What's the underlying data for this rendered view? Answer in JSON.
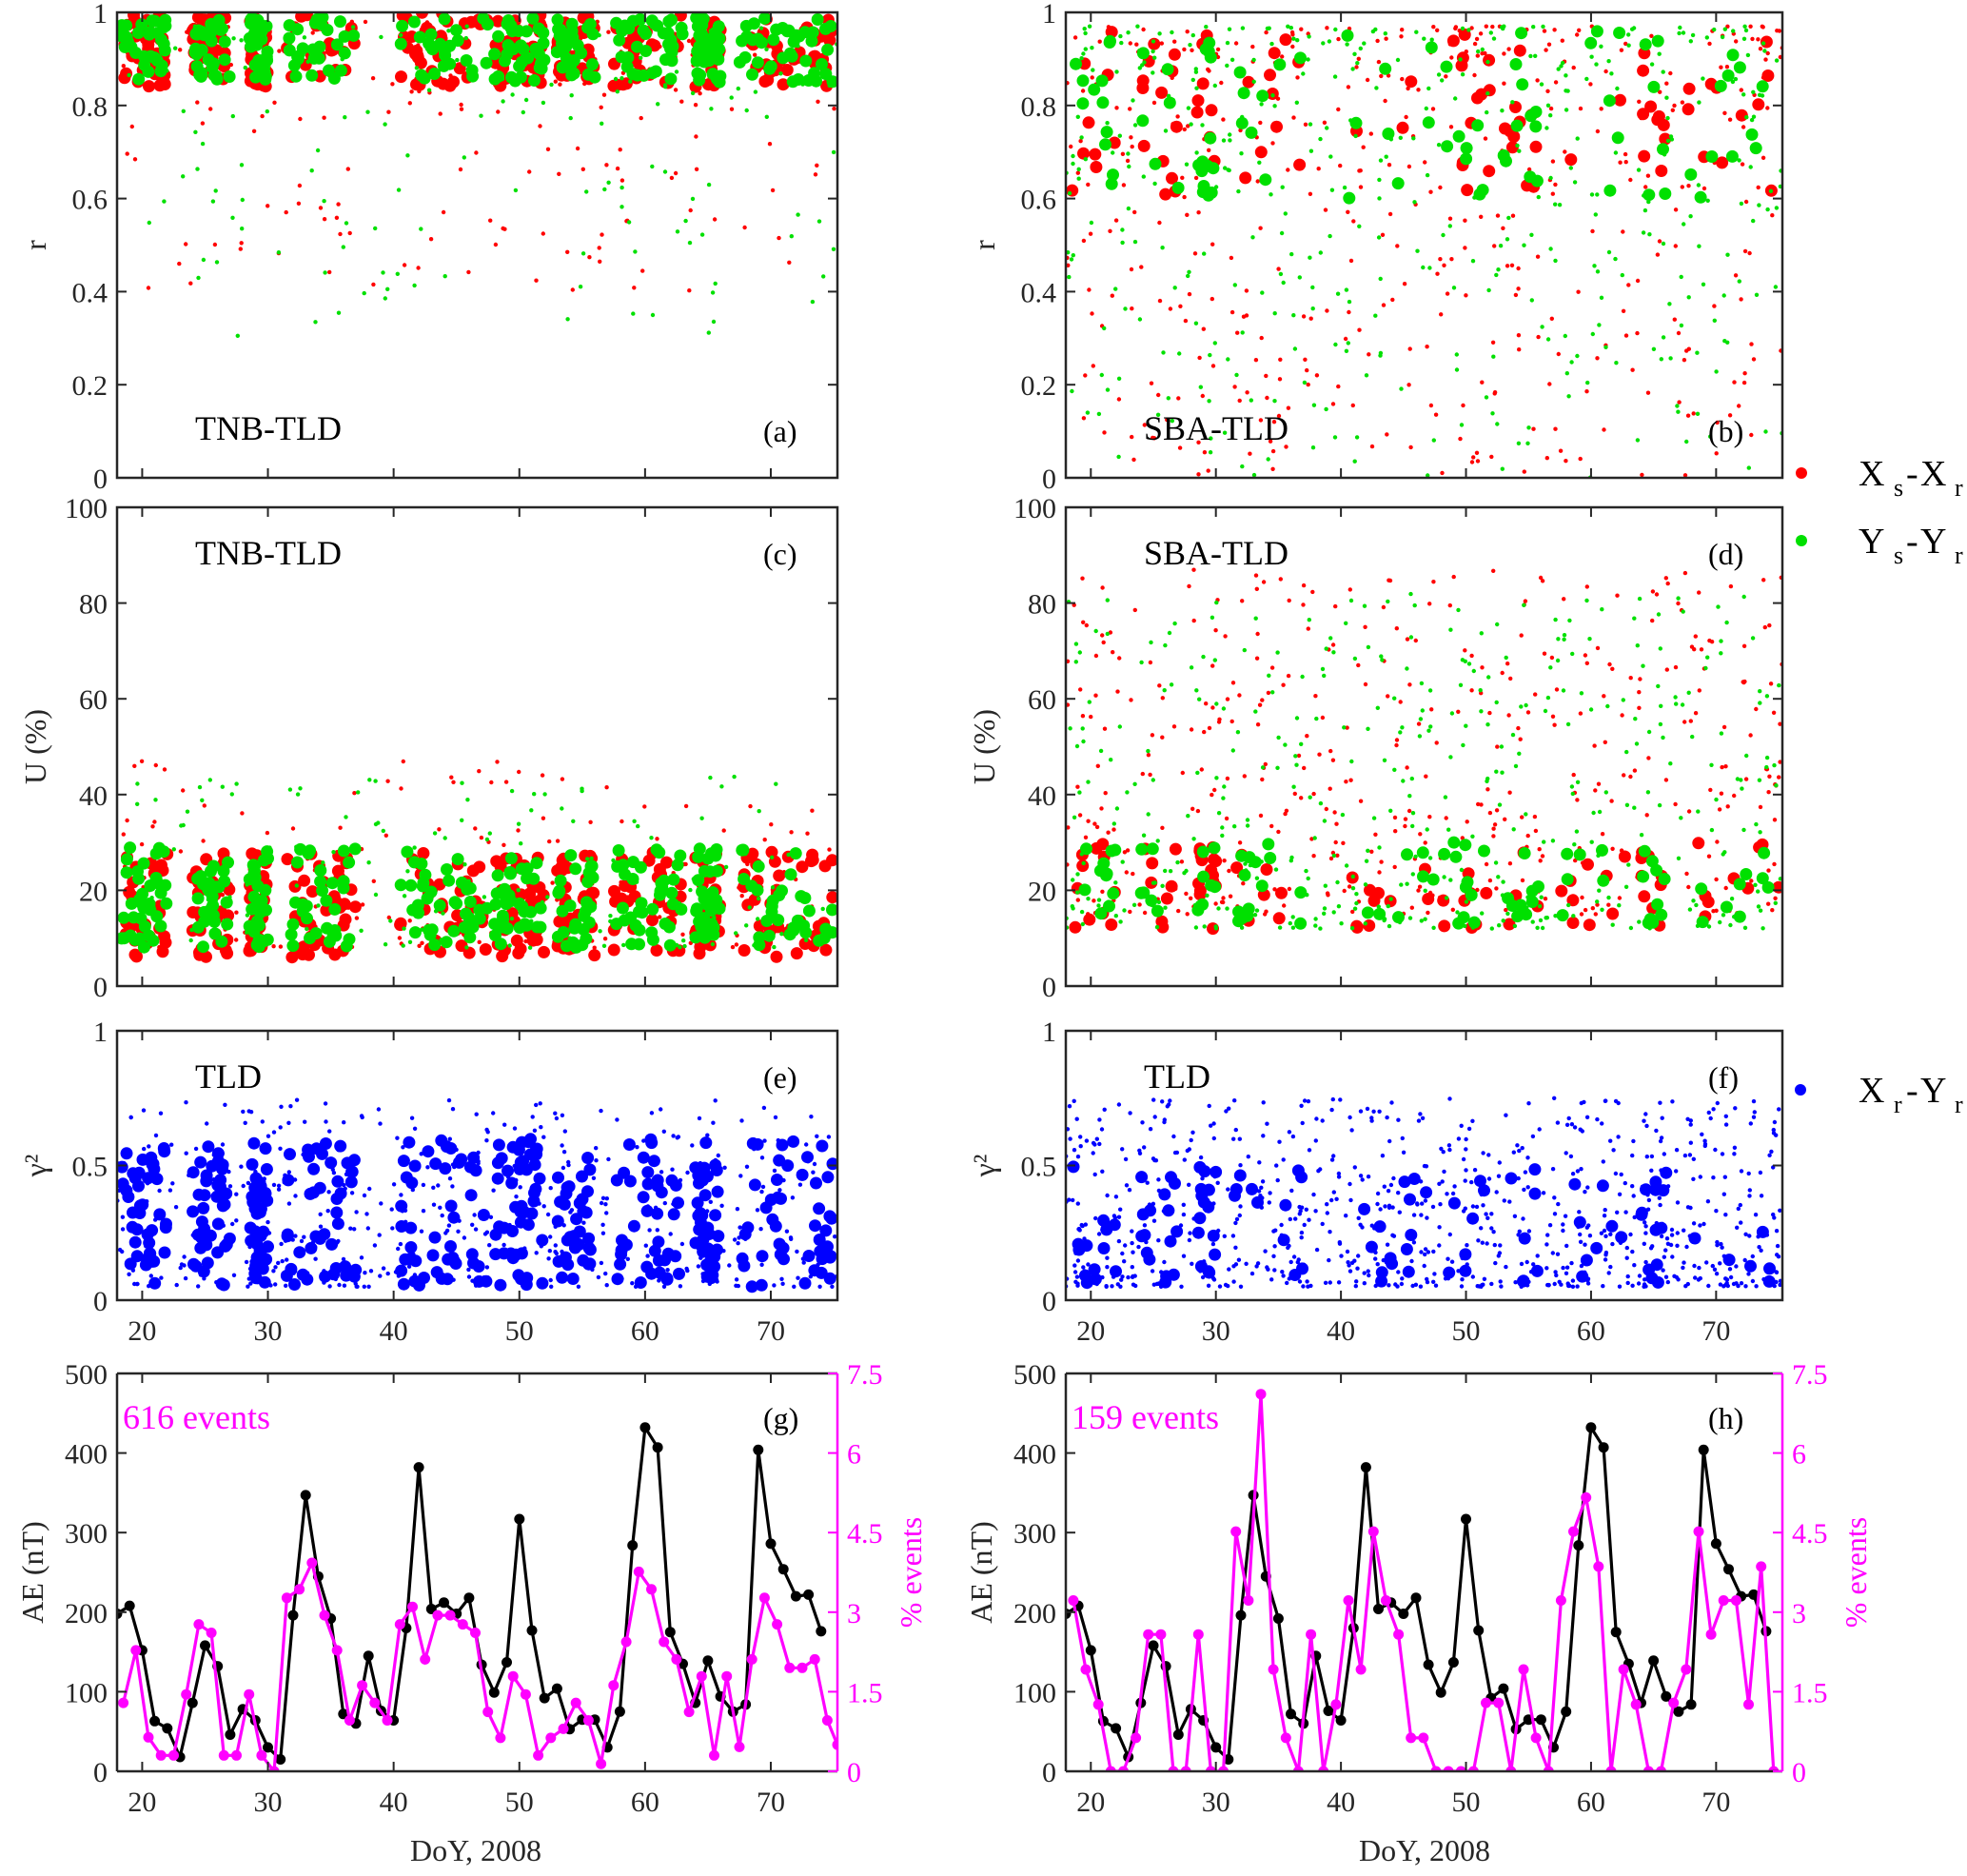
{
  "figure": {
    "x_axis_label": "DoY, 2008",
    "x_ticks": [
      "20",
      "30",
      "40",
      "50",
      "60",
      "70"
    ],
    "legend": [
      {
        "marker_color": "#ff0000",
        "main1": "X",
        "sub1": "s",
        "dash": "-",
        "main2": "X",
        "sub2": "r"
      },
      {
        "marker_color": "#00e000",
        "main1": "Y",
        "sub1": "s",
        "dash": "-",
        "main2": "Y",
        "sub2": "r"
      },
      {
        "marker_color": "#0000ff",
        "main1": "X",
        "sub1": "r",
        "dash": "-",
        "main2": "Y",
        "sub2": "r"
      }
    ]
  },
  "chart_data": [
    {
      "id": "a",
      "type": "scatter",
      "letter": "(a)",
      "station_label": "TNB-TLD",
      "ylabel": "r",
      "xlim": [
        18,
        75.3
      ],
      "ylim": [
        0,
        1
      ],
      "yticks": [
        "0",
        "0.2",
        "0.4",
        "0.6",
        "0.8",
        "1"
      ],
      "ytick_values": [
        0,
        0.2,
        0.4,
        0.6,
        0.8,
        1
      ],
      "series": [
        {
          "name": "Xs-Xr",
          "color": "#ff0000",
          "big_range": [
            0.84,
            1.0
          ],
          "small_range": [
            0.4,
            0.98
          ],
          "big_count": 330,
          "small_count": 160
        },
        {
          "name": "Ys-Yr",
          "color": "#00e000",
          "big_range": [
            0.85,
            0.99
          ],
          "small_range": [
            0.3,
            0.97
          ],
          "big_count": 330,
          "small_count": 160
        }
      ]
    },
    {
      "id": "b",
      "type": "scatter",
      "letter": "(b)",
      "station_label": "SBA-TLD",
      "ylabel": "r",
      "xlim": [
        18,
        75.3
      ],
      "ylim": [
        0,
        1
      ],
      "yticks": [
        "0",
        "0.2",
        "0.4",
        "0.6",
        "0.8",
        "1"
      ],
      "ytick_values": [
        0,
        0.2,
        0.4,
        0.6,
        0.8,
        1
      ],
      "series": [
        {
          "name": "Xs-Xr",
          "color": "#ff0000",
          "big_range": [
            0.6,
            0.96
          ],
          "small_range": [
            0.0,
            0.97
          ],
          "big_count": 90,
          "small_count": 420
        },
        {
          "name": "Ys-Yr",
          "color": "#00e000",
          "big_range": [
            0.6,
            0.96
          ],
          "small_range": [
            0.0,
            0.97
          ],
          "big_count": 90,
          "small_count": 420
        }
      ]
    },
    {
      "id": "c",
      "type": "scatter",
      "letter": "(c)",
      "station_label": "TNB-TLD",
      "ylabel": "U (%)",
      "xlim": [
        18,
        75.3
      ],
      "ylim": [
        0,
        100
      ],
      "yticks": [
        "0",
        "20",
        "40",
        "60",
        "80",
        "100"
      ],
      "ytick_values": [
        0,
        20,
        40,
        60,
        80,
        100
      ],
      "series": [
        {
          "name": "Xs-Xr",
          "color": "#ff0000",
          "big_range": [
            6,
            28
          ],
          "small_range": [
            8,
            47
          ],
          "big_count": 330,
          "small_count": 150
        },
        {
          "name": "Ys-Yr",
          "color": "#00e000",
          "big_range": [
            8,
            29
          ],
          "small_range": [
            8,
            44
          ],
          "big_count": 330,
          "small_count": 150
        }
      ]
    },
    {
      "id": "d",
      "type": "scatter",
      "letter": "(d)",
      "station_label": "SBA-TLD",
      "ylabel": "U (%)",
      "xlim": [
        18,
        75.3
      ],
      "ylim": [
        0,
        100
      ],
      "yticks": [
        "0",
        "20",
        "40",
        "60",
        "80",
        "100"
      ],
      "ytick_values": [
        0,
        20,
        40,
        60,
        80,
        100
      ],
      "series": [
        {
          "name": "Xs-Xr",
          "color": "#ff0000",
          "big_range": [
            12,
            30
          ],
          "small_range": [
            15,
            87
          ],
          "big_count": 90,
          "small_count": 420
        },
        {
          "name": "Ys-Yr",
          "color": "#00e000",
          "big_range": [
            13,
            30
          ],
          "small_range": [
            12,
            82
          ],
          "big_count": 90,
          "small_count": 420
        }
      ]
    },
    {
      "id": "e",
      "type": "scatter",
      "letter": "(e)",
      "station_label": "TLD",
      "ylabel": "γ²",
      "xlim": [
        18,
        75.3
      ],
      "ylim": [
        0,
        1
      ],
      "yticks": [
        "0",
        "0.5",
        "1"
      ],
      "ytick_values": [
        0,
        0.5,
        1
      ],
      "series": [
        {
          "name": "Xr-Yr",
          "color": "#0000ff",
          "big_range": [
            0.05,
            0.6
          ],
          "small_range": [
            0.05,
            0.75
          ],
          "big_count": 420,
          "small_count": 520
        }
      ]
    },
    {
      "id": "f",
      "type": "scatter",
      "letter": "(f)",
      "station_label": "TLD",
      "ylabel": "γ²",
      "xlim": [
        18,
        75.3
      ],
      "ylim": [
        0,
        1
      ],
      "yticks": [
        "0",
        "0.5",
        "1"
      ],
      "ytick_values": [
        0,
        0.5,
        1
      ],
      "series": [
        {
          "name": "Xr-Yr",
          "color": "#0000ff",
          "big_range": [
            0.06,
            0.5
          ],
          "small_range": [
            0.05,
            0.75
          ],
          "big_count": 110,
          "small_count": 820
        }
      ]
    },
    {
      "id": "g",
      "type": "line",
      "letter": "(g)",
      "annotation": "616 events",
      "ylabel": "AE (nT)",
      "ylabel_right": "% events",
      "xlim": [
        18,
        75.3
      ],
      "ylim": [
        0,
        500
      ],
      "ylim_right": [
        0,
        7.5
      ],
      "yticks": [
        "0",
        "100",
        "200",
        "300",
        "400",
        "500"
      ],
      "ytick_values": [
        0,
        100,
        200,
        300,
        400,
        500
      ],
      "yticks_right": [
        "0",
        "1.5",
        "3",
        "4.5",
        "6",
        "7.5"
      ],
      "ytick_right_values": [
        0,
        1.5,
        3,
        4.5,
        6,
        7.5
      ],
      "series": [
        {
          "name": "AE",
          "color": "#000000",
          "axis": "left",
          "x": [
            18,
            19,
            20,
            21,
            22,
            23,
            24,
            25,
            26,
            27,
            28,
            29,
            30,
            31,
            32,
            33,
            34,
            35,
            36,
            37,
            38,
            39,
            40,
            41,
            42,
            43,
            44,
            45,
            46,
            47,
            48,
            49,
            50,
            51,
            52,
            53,
            54,
            55,
            56,
            57,
            58,
            59,
            60,
            61,
            62,
            63,
            64,
            65,
            66,
            67,
            68,
            69,
            70,
            71,
            72,
            73,
            74
          ],
          "y": [
            198,
            208,
            152,
            63,
            54,
            18,
            86,
            158,
            132,
            46,
            78,
            64,
            30,
            15,
            196,
            347,
            245,
            192,
            72,
            60,
            145,
            76,
            64,
            180,
            382,
            204,
            212,
            198,
            218,
            134,
            99,
            137,
            317,
            177,
            92,
            104,
            53,
            65,
            65,
            30,
            75,
            284,
            432,
            407,
            175,
            135,
            86,
            139,
            94,
            75,
            84,
            404,
            286,
            254,
            220,
            222,
            176
          ]
        },
        {
          "name": "% events",
          "color": "#ff00ff",
          "axis": "right",
          "x": [
            18.5,
            19.5,
            20.5,
            21.5,
            22.5,
            23.5,
            24.5,
            25.5,
            26.5,
            27.5,
            28.5,
            29.5,
            30.5,
            31.5,
            32.5,
            33.5,
            34.5,
            35.5,
            36.5,
            37.5,
            38.5,
            39.5,
            40.5,
            41.5,
            42.5,
            43.5,
            44.5,
            45.5,
            46.5,
            47.5,
            48.5,
            49.5,
            50.5,
            51.5,
            52.5,
            53.5,
            54.5,
            55.5,
            56.5,
            57.5,
            58.5,
            59.5,
            60.5,
            61.5,
            62.5,
            63.5,
            64.5,
            65.5,
            66.5,
            67.5,
            68.5,
            69.5,
            70.5,
            71.5,
            72.5,
            73.5,
            74.5,
            75.3
          ],
          "y": [
            1.29,
            2.28,
            0.64,
            0.3,
            0.3,
            1.45,
            2.77,
            2.61,
            0.3,
            0.3,
            1.45,
            0.3,
            0,
            3.27,
            3.43,
            3.93,
            2.94,
            2.28,
            0.96,
            1.62,
            1.29,
            0.96,
            2.77,
            3.1,
            2.11,
            2.94,
            2.94,
            2.77,
            2.61,
            1.12,
            0.63,
            1.79,
            1.45,
            0.3,
            0.63,
            0.8,
            1.29,
            0.96,
            0.14,
            1.62,
            2.44,
            3.76,
            3.43,
            2.44,
            2.11,
            1.12,
            1.79,
            0.3,
            1.79,
            0.46,
            2.11,
            3.27,
            2.77,
            1.95,
            1.95,
            2.11,
            0.96,
            0.5
          ]
        }
      ]
    },
    {
      "id": "h",
      "type": "line",
      "letter": "(h)",
      "annotation": "159 events",
      "ylabel": "AE (nT)",
      "ylabel_right": "% events",
      "xlim": [
        18,
        75.3
      ],
      "ylim": [
        0,
        500
      ],
      "ylim_right": [
        0,
        7.5
      ],
      "yticks": [
        "0",
        "100",
        "200",
        "300",
        "400",
        "500"
      ],
      "ytick_values": [
        0,
        100,
        200,
        300,
        400,
        500
      ],
      "yticks_right": [
        "0",
        "1.5",
        "3",
        "4.5",
        "6",
        "7.5"
      ],
      "ytick_right_values": [
        0,
        1.5,
        3,
        4.5,
        6,
        7.5
      ],
      "series": [
        {
          "name": "AE",
          "color": "#000000",
          "axis": "left",
          "x": [
            18,
            19,
            20,
            21,
            22,
            23,
            24,
            25,
            26,
            27,
            28,
            29,
            30,
            31,
            32,
            33,
            34,
            35,
            36,
            37,
            38,
            39,
            40,
            41,
            42,
            43,
            44,
            45,
            46,
            47,
            48,
            49,
            50,
            51,
            52,
            53,
            54,
            55,
            56,
            57,
            58,
            59,
            60,
            61,
            62,
            63,
            64,
            65,
            66,
            67,
            68,
            69,
            70,
            71,
            72,
            73,
            74
          ],
          "y": [
            198,
            208,
            152,
            63,
            54,
            18,
            86,
            158,
            132,
            46,
            78,
            64,
            30,
            15,
            196,
            347,
            245,
            192,
            72,
            60,
            145,
            76,
            64,
            180,
            382,
            204,
            212,
            198,
            218,
            134,
            99,
            137,
            317,
            177,
            92,
            104,
            53,
            65,
            65,
            30,
            75,
            284,
            432,
            407,
            175,
            135,
            86,
            139,
            94,
            75,
            84,
            404,
            286,
            254,
            220,
            222,
            176
          ]
        },
        {
          "name": "% events",
          "color": "#ff00ff",
          "axis": "right",
          "x": [
            18.6,
            19.6,
            20.6,
            21.6,
            22.6,
            23.6,
            24.6,
            25.6,
            26.6,
            27.6,
            28.6,
            29.6,
            30.6,
            31.6,
            32.6,
            33.6,
            34.6,
            35.6,
            36.6,
            37.6,
            38.6,
            39.6,
            40.6,
            41.6,
            42.6,
            43.6,
            44.6,
            45.6,
            46.6,
            47.6,
            48.6,
            49.6,
            50.6,
            51.6,
            52.6,
            53.6,
            54.6,
            55.6,
            56.6,
            57.6,
            58.6,
            59.6,
            60.6,
            61.6,
            62.6,
            63.6,
            64.6,
            65.6,
            66.6,
            67.6,
            68.6,
            69.6,
            70.6,
            71.6,
            72.6,
            73.6,
            74.6
          ],
          "y": [
            3.22,
            1.92,
            1.26,
            0,
            0,
            0.63,
            2.58,
            2.58,
            0,
            0,
            2.58,
            0,
            0,
            4.52,
            3.22,
            7.11,
            1.92,
            0.63,
            0,
            2.58,
            0,
            1.26,
            3.22,
            1.92,
            4.52,
            3.22,
            2.58,
            0.63,
            0.63,
            0,
            0,
            0,
            0,
            1.29,
            1.29,
            0,
            1.92,
            0.63,
            0,
            3.22,
            4.52,
            5.16,
            3.86,
            0,
            1.92,
            1.26,
            0,
            0,
            1.29,
            1.92,
            4.52,
            2.58,
            3.22,
            3.22,
            1.26,
            3.86,
            0
          ]
        }
      ]
    }
  ]
}
